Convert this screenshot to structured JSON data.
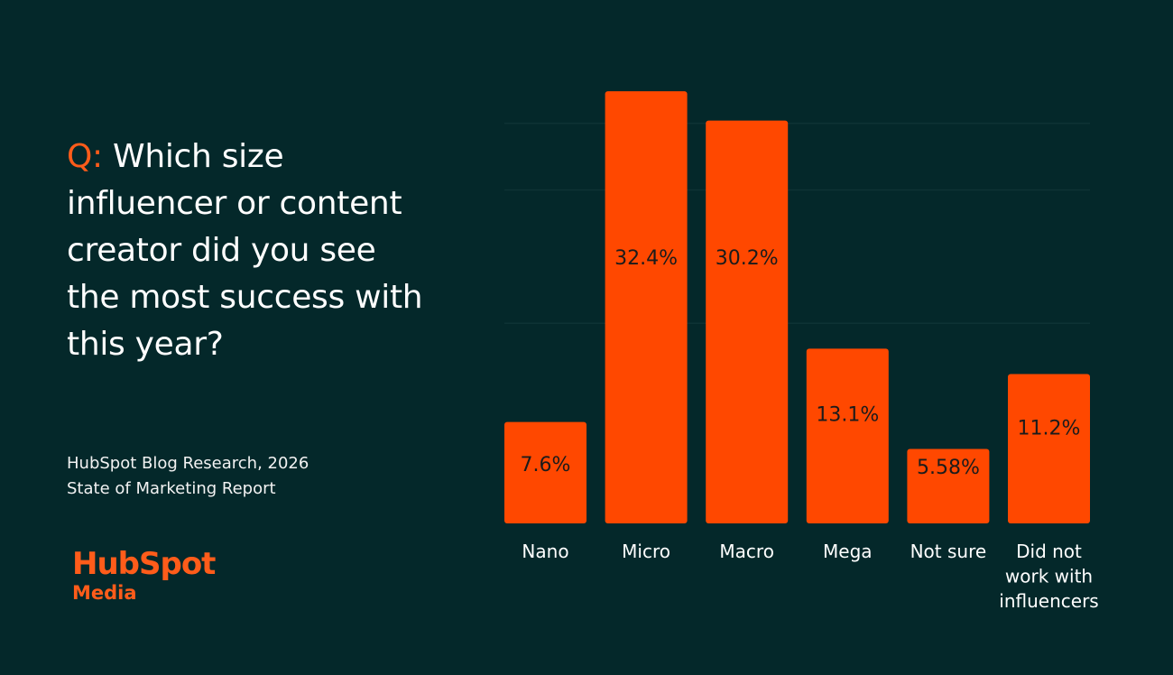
{
  "question": {
    "prefix": "Q:",
    "text": "Which size influencer or content creator did you see the most success with this year?"
  },
  "source": {
    "line1": "HubSpot Blog Research, 2026",
    "line2": "State of Marketing Report"
  },
  "logo": {
    "brand": "HubSpot",
    "sub": "Media"
  },
  "colors": {
    "background": "#04282a",
    "bar": "#ff4800",
    "accent": "#ff5c1a",
    "label": "#1b1b1b",
    "grid": "#0e3335"
  },
  "chart_data": {
    "type": "bar",
    "title": "Which size influencer or content creator did you see the most success with this year?",
    "categories": [
      "Nano",
      "Micro",
      "Macro",
      "Mega",
      "Not sure",
      "Did not work with influencers"
    ],
    "category_lines": [
      [
        "Nano"
      ],
      [
        "Micro"
      ],
      [
        "Macro"
      ],
      [
        "Mega"
      ],
      [
        "Not sure"
      ],
      [
        "Did not",
        "work with",
        "influencers"
      ]
    ],
    "values": [
      7.6,
      32.4,
      30.2,
      13.1,
      5.58,
      11.2
    ],
    "data_labels": [
      "7.6%",
      "32.4%",
      "30.2%",
      "13.1%",
      "5.58%",
      "11.2%"
    ],
    "xlabel": "",
    "ylabel": "",
    "ylim": [
      0,
      32.4
    ],
    "grid": true,
    "legend": "none"
  }
}
